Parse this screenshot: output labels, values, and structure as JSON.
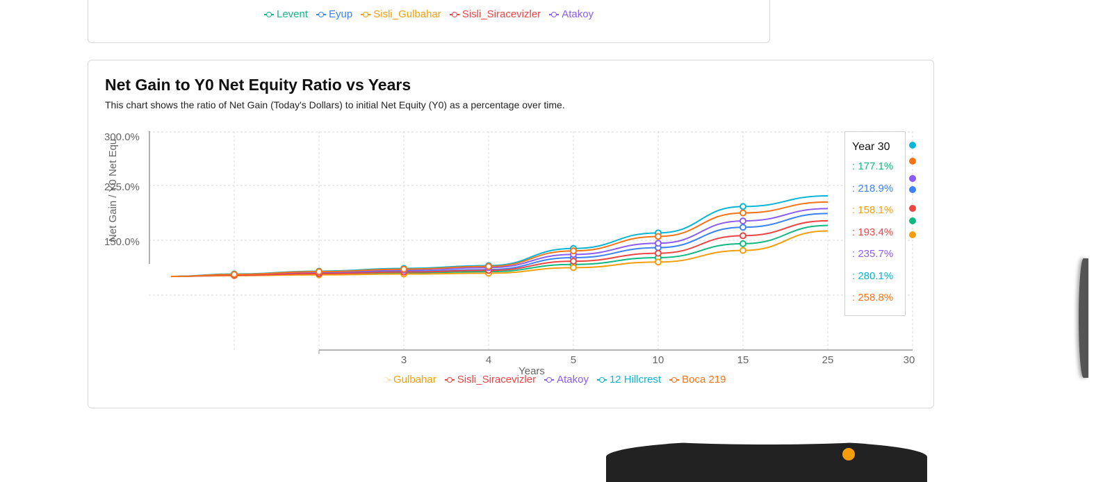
{
  "top_legend": [
    {
      "label": "Levent",
      "color": "#10b981"
    },
    {
      "label": "Eyup",
      "color": "#3b82f6"
    },
    {
      "label": "Sisli_Gulbahar",
      "color": "#f59e0b"
    },
    {
      "label": "Sisli_Siracevizler",
      "color": "#ef4444"
    },
    {
      "label": "Atakoy",
      "color": "#8b5cf6"
    }
  ],
  "card": {
    "title": "Net Gain to Y0 Net Equity Ratio vs Years",
    "subtitle": "This chart shows the ratio of Net Gain (Today's Dollars) to initial Net Equity (Y0) as a percentage over time."
  },
  "tooltip": {
    "title": "Year 30",
    "rows": [
      {
        "text": ": 177.1%",
        "color": "#10b981"
      },
      {
        "text": ": 218.9%",
        "color": "#3b82f6"
      },
      {
        "text": ": 158.1%",
        "color": "#f59e0b"
      },
      {
        "text": ": 193.4%",
        "color": "#ef4444"
      },
      {
        "text": ": 235.7%",
        "color": "#8b5cf6"
      },
      {
        "text": ": 280.1%",
        "color": "#06b6d4"
      },
      {
        "text": ": 258.8%",
        "color": "#f97316"
      }
    ]
  },
  "bottom_legend": [
    {
      "label": "Gulbahar",
      "color": "#f59e0b"
    },
    {
      "label": "Sisli_Siracevizler",
      "color": "#ef4444"
    },
    {
      "label": "Atakoy",
      "color": "#8b5cf6"
    },
    {
      "label": "12 Hillcrest",
      "color": "#06b6d4"
    },
    {
      "label": "Boca 219",
      "color": "#f97316"
    }
  ],
  "chart_data": {
    "type": "line",
    "title": "Net Gain to Y0 Net Equity Ratio vs Years",
    "xlabel": "Years",
    "ylabel": "Net Gain / Y0 Net Equ",
    "x": [
      1,
      2,
      3,
      4,
      5,
      10,
      15,
      25,
      30
    ],
    "x_ticks": [
      "3",
      "4",
      "5",
      "10",
      "15",
      "25",
      "30"
    ],
    "y_ticks": [
      "300.0%",
      "225.0%",
      "150.0%"
    ],
    "ylim": [
      -75,
      300
    ],
    "grid": true,
    "series": [
      {
        "name": "Levent",
        "color": "#10b981",
        "values": [
          0,
          3,
          6,
          9,
          12,
          30,
          47,
          82,
          177.1
        ]
      },
      {
        "name": "Eyup",
        "color": "#3b82f6",
        "values": [
          0,
          4,
          9,
          13,
          17,
          47,
          72,
          123,
          218.9
        ]
      },
      {
        "name": "Sisli_Gulbahar",
        "color": "#f59e0b",
        "values": [
          0,
          2,
          4,
          6,
          8,
          22,
          36,
          65,
          158.1
        ]
      },
      {
        "name": "Sisli_Siracevizler",
        "color": "#ef4444",
        "values": [
          0,
          3,
          7,
          11,
          15,
          38,
          58,
          102,
          193.4
        ]
      },
      {
        "name": "Atakoy",
        "color": "#8b5cf6",
        "values": [
          0,
          5,
          11,
          16,
          22,
          55,
          83,
          139,
          235.7
        ]
      },
      {
        "name": "12 Hillcrest",
        "color": "#06b6d4",
        "values": [
          0,
          6,
          13,
          20,
          27,
          70,
          109,
          175,
          280.1
        ]
      },
      {
        "name": "Boca 219",
        "color": "#f97316",
        "values": [
          0,
          5,
          12,
          18,
          25,
          64,
          100,
          159,
          258.8
        ]
      }
    ]
  }
}
